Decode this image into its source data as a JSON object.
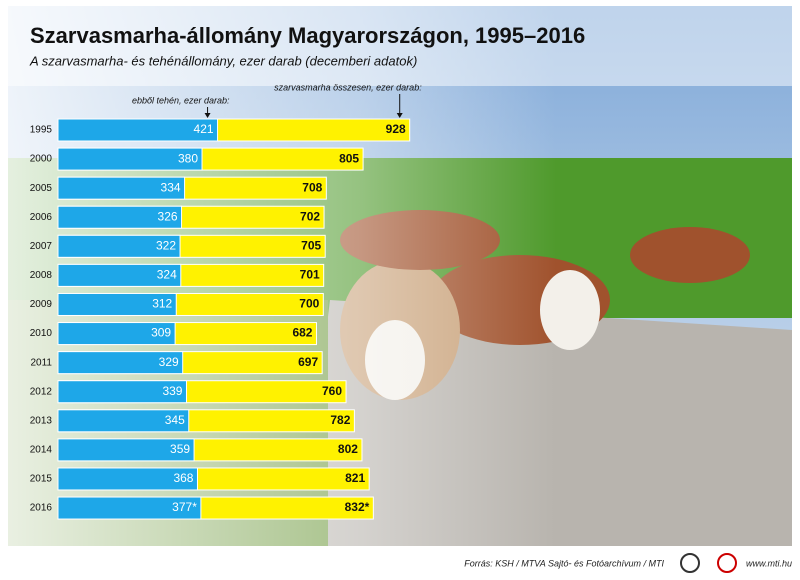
{
  "chart_data": {
    "type": "overlaid-bar",
    "title": "Szarvasmarha-állomány Magyarországon, 1995–2016",
    "subtitle": "A szarvasmarha- és tehénállomány, ezer darab (decemberi adatok)",
    "categories": [
      "1995",
      "2000",
      "2005",
      "2006",
      "2007",
      "2008",
      "2009",
      "2010",
      "2011",
      "2012",
      "2013",
      "2014",
      "2015",
      "2016"
    ],
    "series": [
      {
        "name": "szarvasmarha összesen, ezer darab:",
        "color": "#fff200",
        "values": [
          928,
          805,
          708,
          702,
          705,
          701,
          700,
          682,
          697,
          760,
          782,
          802,
          821,
          832
        ],
        "value_labels": [
          "928",
          "805",
          "708",
          "702",
          "705",
          "701",
          "700",
          "682",
          "697",
          "760",
          "782",
          "802",
          "821",
          "832*"
        ]
      },
      {
        "name": "ebből tehén, ezer darab:",
        "color": "#1ea7e8",
        "values": [
          421,
          380,
          334,
          326,
          322,
          324,
          312,
          309,
          329,
          339,
          345,
          359,
          368,
          377
        ],
        "value_labels": [
          "421",
          "380",
          "334",
          "326",
          "322",
          "324",
          "312",
          "309",
          "329",
          "339",
          "345",
          "359",
          "368",
          "377*"
        ]
      }
    ],
    "source": "Forrás: KSH / MTVA Sajtó- és Fotóarchívum / MTI",
    "website": "www.mti.hu"
  }
}
